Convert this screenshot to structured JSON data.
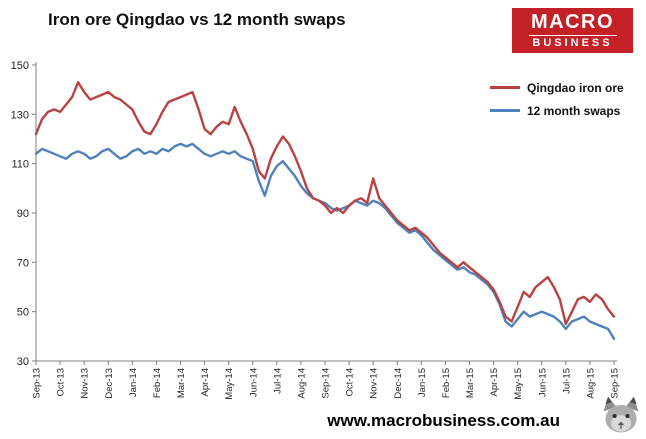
{
  "header": {
    "title": "Iron ore Qingdao vs 12 month swaps"
  },
  "logo": {
    "line1": "MACRO",
    "line2": "BUSINESS",
    "bg": "#c42127"
  },
  "footer": {
    "url": "www.macrobusiness.com.au"
  },
  "chart_data": {
    "type": "line",
    "title": "Iron ore Qingdao vs 12 month swaps",
    "xlabel": "",
    "ylabel": "",
    "ylim": [
      30,
      150
    ],
    "yticks": [
      30,
      50,
      70,
      90,
      110,
      130,
      150
    ],
    "grid": false,
    "legend_position": "top-right-inside",
    "x_tick_labels": [
      "Sep-13",
      "Oct-13",
      "Nov-13",
      "Dec-13",
      "Jan-14",
      "Feb-14",
      "Mar-14",
      "Apr-14",
      "May-14",
      "Jun-14",
      "Jul-14",
      "Aug-14",
      "Sep-14",
      "Oct-14",
      "Nov-14",
      "Dec-14",
      "Jan-15",
      "Feb-15",
      "Mar-15",
      "Apr-15",
      "May-15",
      "Jun-15",
      "Jul-15",
      "Aug-15",
      "Sep-15"
    ],
    "series": [
      {
        "name": "Qingdao iron ore",
        "color": "#b84340",
        "values": [
          122,
          128,
          131,
          132,
          131,
          134,
          137,
          143,
          139,
          136,
          137,
          138,
          139,
          137,
          136,
          134,
          132,
          127,
          123,
          122,
          126,
          131,
          135,
          136,
          137,
          138,
          139,
          132,
          124,
          122,
          125,
          127,
          126,
          133,
          127,
          122,
          116,
          107,
          104,
          112,
          117,
          121,
          118,
          113,
          107,
          100,
          96,
          95,
          93,
          90,
          92,
          90,
          93,
          95,
          96,
          94,
          104,
          96,
          93,
          90,
          87,
          85,
          83,
          84,
          82,
          80,
          77,
          74,
          72,
          70,
          68,
          70,
          68,
          66,
          64,
          62,
          59,
          54,
          48,
          46,
          52,
          58,
          56,
          60,
          62,
          64,
          60,
          55,
          45,
          50,
          55,
          56,
          54,
          57,
          55,
          51,
          48
        ]
      },
      {
        "name": "12 month swaps",
        "color": "#4f81bd",
        "values": [
          114,
          116,
          115,
          114,
          113,
          112,
          114,
          115,
          114,
          112,
          113,
          115,
          116,
          114,
          112,
          113,
          115,
          116,
          114,
          115,
          114,
          116,
          115,
          117,
          118,
          117,
          118,
          116,
          114,
          113,
          114,
          115,
          114,
          115,
          113,
          112,
          111,
          103,
          97,
          105,
          109,
          111,
          108,
          105,
          101,
          98,
          96,
          95,
          94,
          92,
          91,
          92,
          93,
          95,
          94,
          93,
          95,
          94,
          92,
          89,
          86,
          84,
          82,
          83,
          81,
          78,
          75,
          73,
          71,
          69,
          67,
          68,
          66,
          65,
          63,
          61,
          58,
          53,
          46,
          44,
          47,
          50,
          48,
          49,
          50,
          49,
          48,
          46,
          43,
          46,
          47,
          48,
          46,
          45,
          44,
          43,
          39
        ]
      }
    ]
  }
}
